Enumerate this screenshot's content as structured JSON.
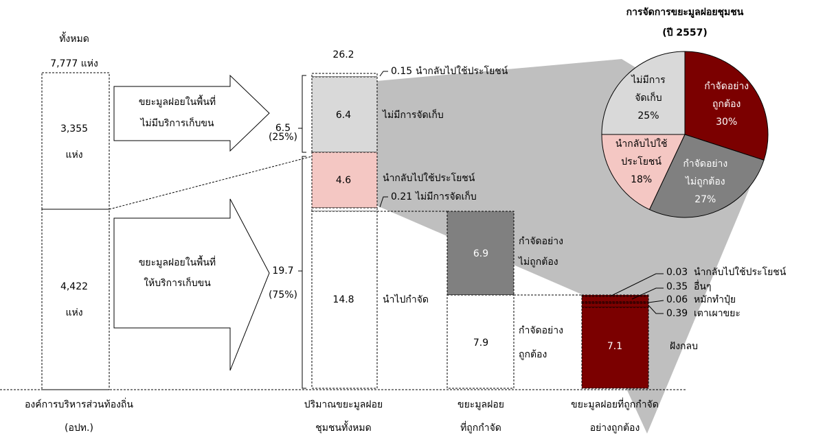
{
  "left_column": {
    "header": "ทั้งหมด",
    "total": "7,777 แห่ง",
    "top_count": "3,355",
    "top_unit": "แห่ง",
    "bottom_count": "4,422",
    "bottom_unit": "แห่ง",
    "label": [
      "องค์การบริหารส่วนท้องถิ่น",
      "(อปท.)"
    ]
  },
  "arrows": [
    {
      "lines": [
        "ขยะมูลฝอยในพื้นที่",
        "ไม่มีบริการเก็บขน"
      ]
    },
    {
      "lines": [
        "ขยะมูลฝอยในพื้นที่",
        "ให้บริการเก็บขน"
      ]
    }
  ],
  "brackets": [
    {
      "value": "6.5",
      "share": "(25%)"
    },
    {
      "value": "19.7",
      "share": "(75%)"
    }
  ],
  "total_column": {
    "total": "26.2",
    "segments": [
      {
        "value": "0.15",
        "label": "นำกลับไปใช้ประโยชน์"
      },
      {
        "value": "6.4",
        "label": "ไม่มีการจัดเก็บ"
      },
      {
        "value": "4.6",
        "label": "นำกลับไปใช้ประโยชน์"
      },
      {
        "value": "0.21",
        "label": "ไม่มีการจัดเก็บ"
      },
      {
        "value": "14.8",
        "label": "นำไปกำจัด"
      }
    ],
    "label": [
      "ปริมาณขยะมูลฝอย",
      "ชุมชนทั้งหมด"
    ]
  },
  "disposed_column": {
    "segments": [
      {
        "value": "6.9",
        "label": [
          "กำจัดอย่าง",
          "ไม่ถูกต้อง"
        ]
      },
      {
        "value": "7.9",
        "label": [
          "กำจัดอย่าง",
          "ถูกต้อง"
        ]
      }
    ],
    "label": [
      "ขยะมูลฝอย",
      "ที่ถูกกำจัด"
    ]
  },
  "proper_column": {
    "segments": [
      {
        "value": "0.03",
        "label": "นำกลับไปใช้ประโยชน์"
      },
      {
        "value": "0.35",
        "label": "อื่นๆ"
      },
      {
        "value": "0.06",
        "label": "หมักทำปุ๋ย"
      },
      {
        "value": "0.39",
        "label": "เตาเผาขยะ"
      },
      {
        "value": "7.1",
        "label": "ฝังกลบ"
      }
    ],
    "label": [
      "ขยะมูลฝอยที่ถูกกำจัด",
      "อย่างถูกต้อง"
    ]
  },
  "chart_data": {
    "type": "pie",
    "title": "การจัดการขยะมูลฝอยชุมชน",
    "subtitle": "(ปี 2557)",
    "categories": [
      [
        "กำจัดอย่าง",
        "ถูกต้อง"
      ],
      [
        "กำจัดอย่าง",
        "ไม่ถูกต้อง"
      ],
      [
        "นำกลับไปใช้",
        "ประโยชน์"
      ],
      [
        "ไม่มีการ",
        "จัดเก็บ"
      ]
    ],
    "values": [
      30,
      27,
      18,
      25
    ],
    "value_labels": [
      "30%",
      "27%",
      "18%",
      "25%"
    ],
    "colors": [
      "#7b0000",
      "#808080",
      "#f4c7c3",
      "#d9d9d9"
    ],
    "text_colors": [
      "#ffffff",
      "#ffffff",
      "#000000",
      "#000000"
    ]
  }
}
